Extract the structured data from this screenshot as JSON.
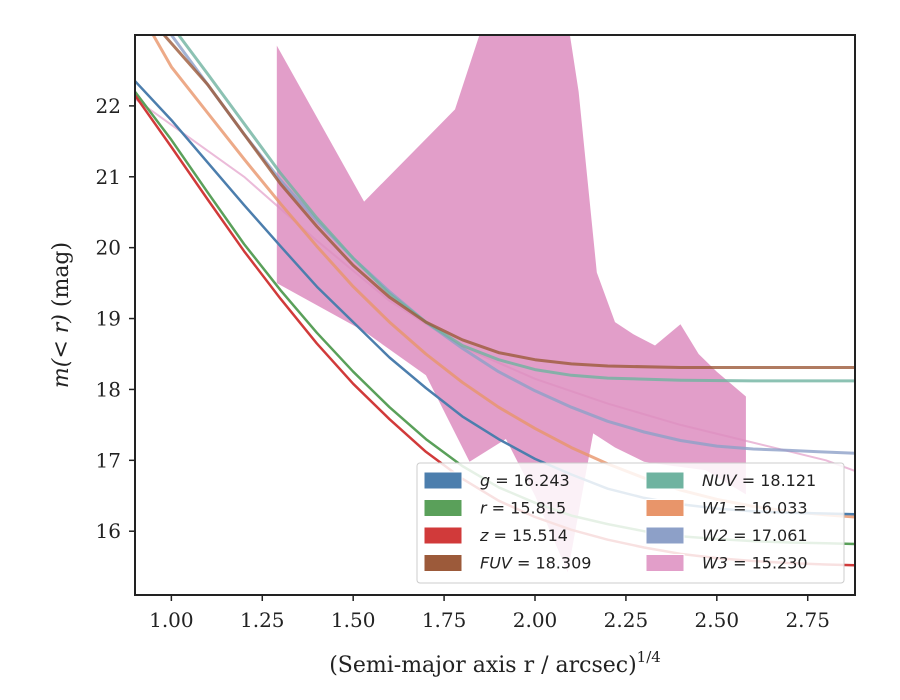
{
  "chart_data": {
    "type": "line",
    "xlabel": "(Semi-major axis r / arcsec)",
    "xlabel_superscript": "1/4",
    "ylabel_math": "m(< r)",
    "ylabel_unit": "(mag)",
    "xlim": [
      0.9,
      2.88
    ],
    "ylim": [
      23.0,
      15.1
    ],
    "y_inverted": true,
    "grid": false,
    "legend_position": "lower-right",
    "xticks": [
      {
        "value": 1.0,
        "label": "1.00"
      },
      {
        "value": 1.25,
        "label": "1.25"
      },
      {
        "value": 1.5,
        "label": "1.50"
      },
      {
        "value": 1.75,
        "label": "1.75"
      },
      {
        "value": 2.0,
        "label": "2.00"
      },
      {
        "value": 2.25,
        "label": "2.25"
      },
      {
        "value": 2.5,
        "label": "2.50"
      },
      {
        "value": 2.75,
        "label": "2.75"
      }
    ],
    "yticks": [
      {
        "value": 16,
        "label": "16"
      },
      {
        "value": 17,
        "label": "17"
      },
      {
        "value": 18,
        "label": "18"
      },
      {
        "value": 19,
        "label": "19"
      },
      {
        "value": 20,
        "label": "20"
      },
      {
        "value": 21,
        "label": "21"
      },
      {
        "value": 22,
        "label": "22"
      }
    ],
    "series": [
      {
        "key": "g",
        "name": "g",
        "value": "16.243",
        "color": "#4c7ead",
        "kind": "line",
        "x": [
          0.9,
          1.0,
          1.1,
          1.2,
          1.3,
          1.4,
          1.5,
          1.6,
          1.7,
          1.8,
          1.9,
          2.0,
          2.1,
          2.2,
          2.3,
          2.4,
          2.5,
          2.6,
          2.7,
          2.8,
          2.88
        ],
        "y": [
          22.35,
          21.8,
          21.2,
          20.6,
          20.02,
          19.45,
          18.95,
          18.45,
          18.02,
          17.62,
          17.3,
          17.02,
          16.8,
          16.6,
          16.47,
          16.38,
          16.32,
          16.28,
          16.26,
          16.25,
          16.24
        ]
      },
      {
        "key": "r",
        "name": "r",
        "value": "15.815",
        "color": "#5aa05a",
        "kind": "line",
        "x": [
          0.9,
          1.0,
          1.1,
          1.2,
          1.3,
          1.4,
          1.5,
          1.6,
          1.7,
          1.8,
          1.9,
          2.0,
          2.1,
          2.2,
          2.3,
          2.4,
          2.5,
          2.6,
          2.7,
          2.8,
          2.88
        ],
        "y": [
          22.2,
          21.52,
          20.78,
          20.05,
          19.4,
          18.8,
          18.25,
          17.75,
          17.3,
          16.92,
          16.62,
          16.4,
          16.22,
          16.1,
          16.0,
          15.93,
          15.89,
          15.86,
          15.84,
          15.83,
          15.82
        ]
      },
      {
        "key": "z",
        "name": "z",
        "value": "15.514",
        "color": "#d13a3a",
        "kind": "line",
        "x": [
          0.9,
          1.0,
          1.1,
          1.2,
          1.3,
          1.4,
          1.5,
          1.6,
          1.7,
          1.8,
          1.9,
          2.0,
          2.1,
          2.2,
          2.3,
          2.4,
          2.5,
          2.6,
          2.7,
          2.8,
          2.88
        ],
        "y": [
          22.15,
          21.42,
          20.68,
          19.95,
          19.28,
          18.65,
          18.08,
          17.58,
          17.12,
          16.74,
          16.43,
          16.2,
          16.02,
          15.88,
          15.77,
          15.68,
          15.62,
          15.58,
          15.55,
          15.53,
          15.52
        ]
      },
      {
        "key": "FUV",
        "name": "FUV",
        "value": "18.309",
        "color": "#9c5a3a",
        "kind": "line",
        "x": [
          0.98,
          1.1,
          1.2,
          1.3,
          1.4,
          1.5,
          1.6,
          1.7,
          1.8,
          1.9,
          2.0,
          2.1,
          2.2,
          2.4,
          2.6,
          2.88
        ],
        "y": [
          23.0,
          22.3,
          21.6,
          20.9,
          20.3,
          19.75,
          19.3,
          18.95,
          18.7,
          18.52,
          18.42,
          18.36,
          18.33,
          18.31,
          18.31,
          18.31
        ]
      },
      {
        "key": "NUV",
        "name": "NUV",
        "value": "18.121",
        "color": "#6fb3a0",
        "kind": "line",
        "x": [
          1.02,
          1.1,
          1.2,
          1.3,
          1.4,
          1.5,
          1.6,
          1.7,
          1.8,
          1.9,
          2.0,
          2.1,
          2.2,
          2.4,
          2.6,
          2.88
        ],
        "y": [
          23.0,
          22.45,
          21.75,
          21.05,
          20.42,
          19.85,
          19.35,
          18.95,
          18.62,
          18.42,
          18.28,
          18.2,
          18.16,
          18.13,
          18.12,
          18.12
        ]
      },
      {
        "key": "W1",
        "name": "W1",
        "value": "16.033",
        "color": "#e8956a",
        "kind": "line",
        "x": [
          0.95,
          1.0,
          1.1,
          1.2,
          1.3,
          1.4,
          1.5,
          1.6,
          1.7,
          1.8,
          1.9,
          2.0,
          2.1,
          2.2,
          2.3,
          2.4,
          2.5,
          2.6,
          2.7,
          2.8,
          2.88
        ],
        "y": [
          23.0,
          22.55,
          21.9,
          21.25,
          20.62,
          20.02,
          19.45,
          18.95,
          18.5,
          18.1,
          17.75,
          17.45,
          17.18,
          16.95,
          16.75,
          16.58,
          16.45,
          16.35,
          16.28,
          16.23,
          16.2
        ]
      },
      {
        "key": "W2",
        "name": "W2",
        "value": "17.061",
        "color": "#8da0c8",
        "kind": "line",
        "x": [
          1.0,
          1.1,
          1.2,
          1.3,
          1.4,
          1.5,
          1.6,
          1.7,
          1.8,
          1.9,
          2.0,
          2.1,
          2.2,
          2.3,
          2.4,
          2.5,
          2.6,
          2.7,
          2.78,
          2.88
        ],
        "y": [
          23.0,
          22.3,
          21.6,
          20.95,
          20.38,
          19.85,
          19.38,
          18.95,
          18.58,
          18.25,
          17.98,
          17.75,
          17.55,
          17.4,
          17.28,
          17.2,
          17.16,
          17.14,
          17.12,
          17.1
        ]
      },
      {
        "key": "W3",
        "name": "W3",
        "value": "15.230",
        "color": "#dd8dc0",
        "kind": "band",
        "x": [
          0.9,
          1.2,
          1.4,
          1.6,
          1.8,
          2.0,
          2.2,
          2.4,
          2.6,
          2.8,
          2.88
        ],
        "y": [
          22.1,
          21.0,
          20.1,
          19.25,
          18.6,
          18.15,
          17.8,
          17.5,
          17.25,
          17.0,
          16.85
        ],
        "band_x": [
          1.29,
          1.53,
          1.7,
          1.82,
          1.92,
          2.0,
          2.09,
          2.16,
          2.22,
          2.3,
          2.38,
          2.47,
          2.58,
          2.58,
          2.5,
          2.45,
          2.4,
          2.33,
          2.27,
          2.22,
          2.17,
          2.12,
          2.09,
          1.98,
          1.86,
          1.78,
          1.53,
          1.29
        ],
        "band_y": [
          19.5,
          18.82,
          18.2,
          16.98,
          17.3,
          16.5,
          15.42,
          17.38,
          17.18,
          16.98,
          16.92,
          16.86,
          16.52,
          17.9,
          18.25,
          18.5,
          18.92,
          18.62,
          18.78,
          18.95,
          19.65,
          22.2,
          23.2,
          23.2,
          23.2,
          21.95,
          20.65,
          22.85
        ]
      }
    ],
    "legend": [
      {
        "series": "g",
        "math": "g",
        "value": "16.243"
      },
      {
        "series": "r",
        "math": "r",
        "value": "15.815"
      },
      {
        "series": "z",
        "math": "z",
        "value": "15.514"
      },
      {
        "series": "FUV",
        "math": "FUV",
        "value": "18.309"
      },
      {
        "series": "NUV",
        "math": "NUV",
        "value": "18.121"
      },
      {
        "series": "W1",
        "math": "W1",
        "value": "16.033"
      },
      {
        "series": "W2",
        "math": "W2",
        "value": "17.061"
      },
      {
        "series": "W3",
        "math": "W3",
        "value": "15.230"
      }
    ]
  }
}
